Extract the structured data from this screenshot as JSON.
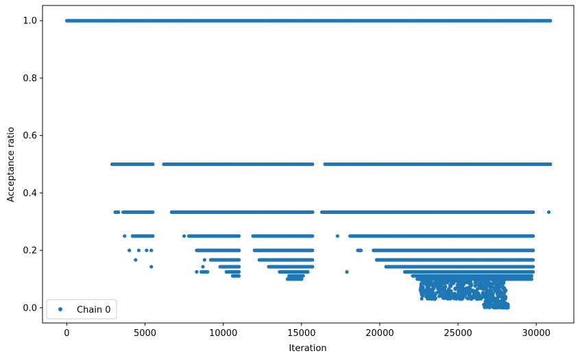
{
  "chart_data": {
    "type": "scatter",
    "title": "",
    "xlabel": "Iteration",
    "ylabel": "Acceptance ratio",
    "xlim": [
      -1550,
      32400
    ],
    "ylim": [
      -0.053,
      1.053
    ],
    "xticks": [
      0,
      5000,
      10000,
      15000,
      20000,
      25000,
      30000
    ],
    "xtick_labels": [
      "0",
      "5000",
      "10000",
      "15000",
      "20000",
      "25000",
      "30000"
    ],
    "yticks": [
      0.0,
      0.2,
      0.4,
      0.6,
      0.8,
      1.0
    ],
    "ytick_labels": [
      "0.0",
      "0.2",
      "0.4",
      "0.6",
      "0.8",
      "1.0"
    ],
    "grid": false,
    "legend": "lower-left",
    "color": "#1f77b4",
    "series": [
      {
        "name": "Chain 0",
        "bands": [
          {
            "y": 1.0,
            "segments": [
              [
                0,
                30900
              ]
            ]
          },
          {
            "y": 0.5,
            "segments": [
              [
                2900,
                5500
              ],
              [
                6200,
                15700
              ],
              [
                16500,
                30900
              ]
            ]
          },
          {
            "y": 0.333,
            "segments": [
              [
                3100,
                3300
              ],
              [
                3600,
                5500
              ],
              [
                6700,
                15700
              ],
              [
                16300,
                29800
              ]
            ],
            "extra_x": [
              30800
            ]
          },
          {
            "y": 0.25,
            "segments": [
              [
                4200,
                5500
              ],
              [
                7800,
                11000
              ],
              [
                11900,
                15700
              ],
              [
                18100,
                29800
              ]
            ],
            "extra_x": [
              3700,
              7500,
              17300
            ]
          },
          {
            "y": 0.2,
            "segments": [
              [
                8300,
                11000
              ],
              [
                12000,
                15700
              ],
              [
                18600,
                18800
              ],
              [
                19600,
                29800
              ]
            ],
            "extra_x": [
              4000,
              4600,
              5100,
              5400
            ]
          },
          {
            "y": 0.1667,
            "segments": [
              [
                9200,
                11000
              ],
              [
                12300,
                15700
              ],
              [
                19800,
                29800
              ]
            ],
            "extra_x": [
              4400,
              8800
            ]
          },
          {
            "y": 0.1429,
            "segments": [
              [
                9800,
                11000
              ],
              [
                12900,
                15700
              ],
              [
                20400,
                29800
              ]
            ],
            "extra_x": [
              5400,
              8700
            ]
          },
          {
            "y": 0.125,
            "segments": [
              [
                8600,
                9000
              ],
              [
                10200,
                11000
              ],
              [
                13600,
                15400
              ],
              [
                21600,
                29800
              ]
            ],
            "extra_x": [
              8300,
              17900
            ]
          },
          {
            "y": 0.111,
            "segments": [
              [
                10600,
                11000
              ],
              [
                14200,
                15100
              ],
              [
                22100,
                29700
              ]
            ]
          },
          {
            "y": 0.1,
            "segments": [
              [
                14100,
                15000
              ],
              [
                22400,
                29700
              ]
            ]
          }
        ],
        "cluster": {
          "x_range": [
            22600,
            28100
          ],
          "y_range": [
            0.03,
            0.1
          ],
          "count": 500
        },
        "tail": {
          "x_range": [
            26500,
            28200
          ],
          "y_range": [
            0.0,
            0.06
          ],
          "count": 260
        }
      }
    ]
  }
}
